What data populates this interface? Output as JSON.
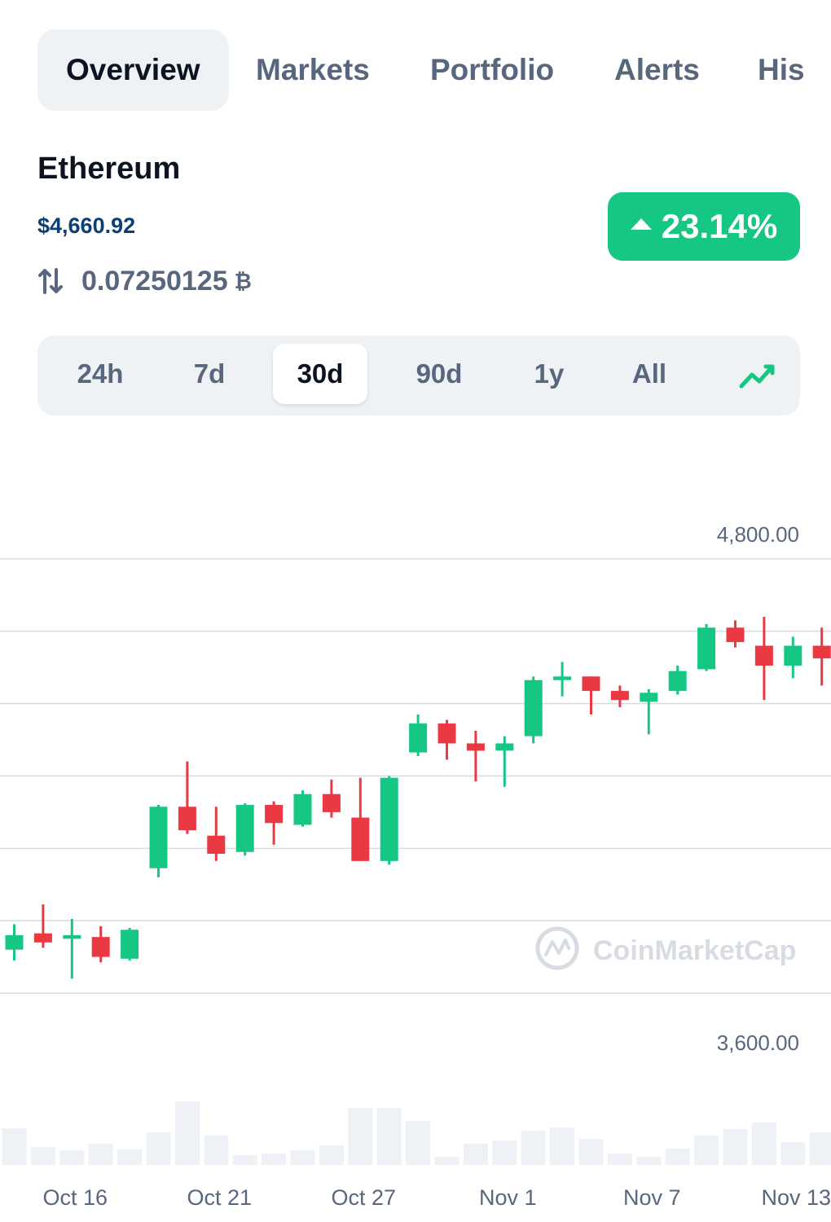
{
  "tabs": [
    {
      "label": "Overview",
      "active": true
    },
    {
      "label": "Markets",
      "active": false
    },
    {
      "label": "Portfolio",
      "active": false
    },
    {
      "label": "Alerts",
      "active": false
    },
    {
      "label": "His",
      "active": false
    }
  ],
  "coin": {
    "name": "Ethereum",
    "price": "$4,660.92",
    "btc_value": "0.07250125",
    "btc_symbol": "₿",
    "change": "23.14%"
  },
  "ranges": [
    {
      "label": "24h",
      "active": false
    },
    {
      "label": "7d",
      "active": false
    },
    {
      "label": "30d",
      "active": true
    },
    {
      "label": "90d",
      "active": false
    },
    {
      "label": "1y",
      "active": false
    },
    {
      "label": "All",
      "active": false
    }
  ],
  "colors": {
    "up": "#16c784",
    "down": "#ea3943",
    "grid": "#d7dce3",
    "volume": "#eef1f5",
    "axis_text": "#58667e"
  },
  "icons": {
    "swap": "swap-vertical-icon",
    "trend": "trend-line-icon",
    "up": "triangle-up-icon",
    "watermark_logo": "coinmarketcap-logo-icon"
  },
  "watermark": "CoinMarketCap",
  "chart_data": {
    "type": "candlestick",
    "y_ticks": [
      "4,800.00",
      "3,600.00"
    ],
    "y_tick_values": [
      4800,
      3600
    ],
    "ylim": [
      3600,
      4800
    ],
    "grid": true,
    "x_tick_labels": [
      "Oct 16",
      "Oct 21",
      "Oct 27",
      "Nov 1",
      "Nov 7",
      "Nov 13"
    ],
    "x_tick_index": [
      2,
      7,
      12,
      17,
      22,
      27
    ],
    "candles": [
      {
        "o": 3720,
        "c": 3760,
        "h": 3790,
        "l": 3690
      },
      {
        "o": 3765,
        "c": 3740,
        "h": 3845,
        "l": 3725
      },
      {
        "o": 3750,
        "c": 3760,
        "h": 3805,
        "l": 3640
      },
      {
        "o": 3755,
        "c": 3700,
        "h": 3785,
        "l": 3685
      },
      {
        "o": 3695,
        "c": 3775,
        "h": 3780,
        "l": 3690
      },
      {
        "o": 3945,
        "c": 4115,
        "h": 4120,
        "l": 3920
      },
      {
        "o": 4115,
        "c": 4050,
        "h": 4240,
        "l": 4040
      },
      {
        "o": 4035,
        "c": 3985,
        "h": 4115,
        "l": 3965
      },
      {
        "o": 3990,
        "c": 4120,
        "h": 4125,
        "l": 3980
      },
      {
        "o": 4120,
        "c": 4070,
        "h": 4130,
        "l": 4010
      },
      {
        "o": 4065,
        "c": 4150,
        "h": 4160,
        "l": 4060
      },
      {
        "o": 4150,
        "c": 4100,
        "h": 4190,
        "l": 4085
      },
      {
        "o": 4085,
        "c": 3965,
        "h": 4195,
        "l": 3965
      },
      {
        "o": 3965,
        "c": 4195,
        "h": 4200,
        "l": 3955
      },
      {
        "o": 4265,
        "c": 4345,
        "h": 4370,
        "l": 4255
      },
      {
        "o": 4345,
        "c": 4290,
        "h": 4355,
        "l": 4245
      },
      {
        "o": 4290,
        "c": 4270,
        "h": 4325,
        "l": 4185
      },
      {
        "o": 4270,
        "c": 4290,
        "h": 4310,
        "l": 4170
      },
      {
        "o": 4310,
        "c": 4465,
        "h": 4475,
        "l": 4290
      },
      {
        "o": 4465,
        "c": 4475,
        "h": 4515,
        "l": 4420
      },
      {
        "o": 4475,
        "c": 4435,
        "h": 4475,
        "l": 4370
      },
      {
        "o": 4435,
        "c": 4410,
        "h": 4450,
        "l": 4390
      },
      {
        "o": 4405,
        "c": 4430,
        "h": 4440,
        "l": 4315
      },
      {
        "o": 4435,
        "c": 4490,
        "h": 4505,
        "l": 4425
      },
      {
        "o": 4495,
        "c": 4610,
        "h": 4620,
        "l": 4490
      },
      {
        "o": 4610,
        "c": 4570,
        "h": 4630,
        "l": 4555
      },
      {
        "o": 4560,
        "c": 4505,
        "h": 4640,
        "l": 4410
      },
      {
        "o": 4505,
        "c": 4560,
        "h": 4585,
        "l": 4470
      },
      {
        "o": 4560,
        "c": 4525,
        "h": 4610,
        "l": 4450
      }
    ],
    "volume": [
      45,
      22,
      18,
      26,
      19,
      40,
      78,
      36,
      12,
      14,
      18,
      24,
      70,
      70,
      54,
      10,
      26,
      30,
      42,
      46,
      32,
      14,
      10,
      20,
      36,
      44,
      52,
      28,
      40
    ]
  }
}
